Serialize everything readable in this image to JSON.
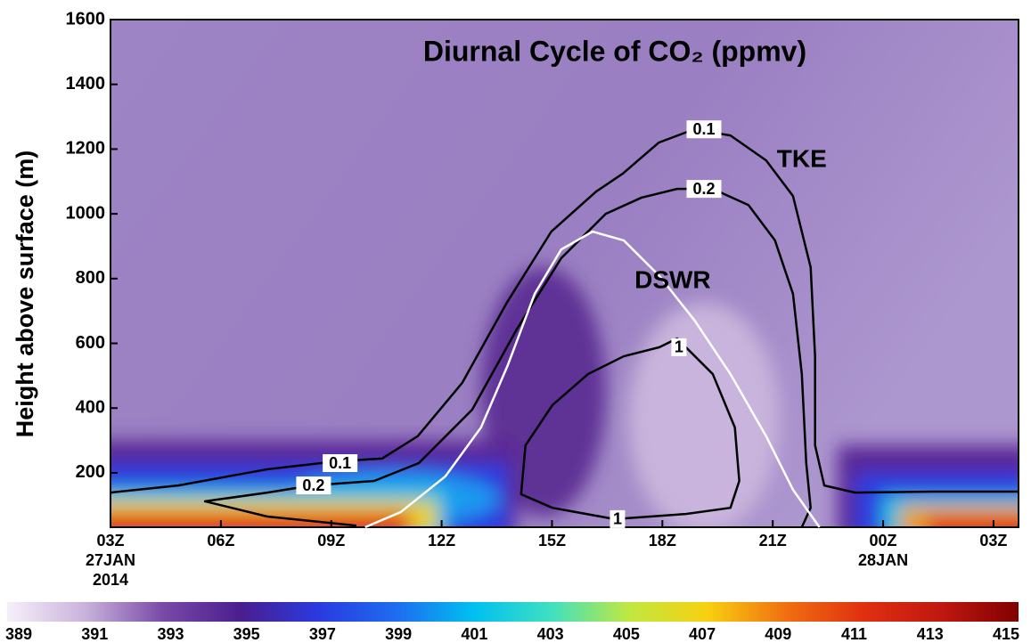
{
  "chart_data": {
    "type": "contour",
    "title": "Diurnal Cycle of CO₂ (ppmv)",
    "y_label": "Height above surface (m)",
    "xlim": [
      0,
      24.68
    ],
    "ylim": [
      32,
      1600
    ],
    "yticks": [
      200,
      400,
      600,
      800,
      1000,
      1200,
      1400,
      1600
    ],
    "xticks": [
      {
        "value": 0,
        "label": "03Z",
        "date": "27JAN",
        "year": "2014"
      },
      {
        "value": 3,
        "label": "06Z"
      },
      {
        "value": 6,
        "label": "09Z"
      },
      {
        "value": 9,
        "label": "12Z"
      },
      {
        "value": 12,
        "label": "15Z"
      },
      {
        "value": 15,
        "label": "18Z"
      },
      {
        "value": 18,
        "label": "21Z"
      },
      {
        "value": 21,
        "label": "00Z",
        "date": "28JAN"
      },
      {
        "value": 24,
        "label": "03Z"
      }
    ],
    "series": [
      {
        "name": "TKE",
        "level": "0.1",
        "color": "#000000",
        "x": [
          0,
          1.84,
          4.26,
          6.17,
          7.38,
          8.35,
          9.56,
          10.77,
          11.98,
          13.2,
          13.92,
          14.9,
          15.86,
          16.85,
          17.82,
          18.55,
          19.03,
          19.15,
          19.15,
          19.4,
          20.24,
          22.42,
          24.67
        ],
        "y": [
          139,
          161,
          211,
          236,
          244,
          313,
          478,
          725,
          945,
          1069,
          1124,
          1220,
          1261,
          1242,
          1165,
          1055,
          835,
          560,
          285,
          161,
          139,
          142,
          142
        ]
      },
      {
        "name": "TKE",
        "level": "0.2",
        "color": "#000000",
        "x": [
          6.68,
          4.26,
          2.57,
          4.26,
          5.47,
          7.17,
          8.38,
          9.83,
          11.04,
          12.25,
          13.46,
          14.43,
          15.4,
          16.37,
          17.34,
          18.06,
          18.55,
          18.79,
          18.91,
          19.03,
          18.79
        ],
        "y": [
          37,
          65,
          112,
          139,
          161,
          175,
          230,
          395,
          643,
          863,
          1000,
          1050,
          1077,
          1077,
          1027,
          918,
          753,
          505,
          230,
          92,
          32
        ]
      },
      {
        "name": "TKE",
        "level": "1",
        "color": "#000000",
        "x": [
          13.7,
          12.01,
          11.16,
          11.28,
          12.01,
          12.98,
          13.95,
          14.92,
          15.4,
          16.37,
          16.97,
          17.09,
          16.85,
          15.64,
          13.7
        ],
        "y": [
          57,
          92,
          134,
          285,
          409,
          505,
          560,
          588,
          615,
          505,
          340,
          175,
          92,
          73,
          57
        ]
      },
      {
        "name": "DSWR",
        "color": "#ffffff",
        "x": [
          6.92,
          7.89,
          9.1,
          10.07,
          10.8,
          11.53,
          12.25,
          13.1,
          13.95,
          14.92,
          15.88,
          16.85,
          17.82,
          18.55,
          19.27
        ],
        "y": [
          32,
          79,
          189,
          340,
          533,
          753,
          890,
          945,
          918,
          808,
          670,
          505,
          313,
          148,
          32
        ]
      }
    ],
    "annotations": [
      {
        "text": "TKE",
        "x": 18.79,
        "y": 1165
      },
      {
        "text": "DSWR",
        "x": 15.28,
        "y": 791
      }
    ],
    "contour_labels": [
      {
        "text": "0.1",
        "x": 6.24,
        "y": 230
      },
      {
        "text": "0.1",
        "x": 16.13,
        "y": 1261
      },
      {
        "text": "0.2",
        "x": 5.52,
        "y": 161
      },
      {
        "text": "0.2",
        "x": 16.13,
        "y": 1077
      },
      {
        "text": "1",
        "x": 15.45,
        "y": 588
      },
      {
        "text": "1",
        "x": 13.78,
        "y": 57
      }
    ],
    "colorbar": {
      "range": [
        389,
        415
      ],
      "ticks": [
        389,
        391,
        393,
        395,
        397,
        399,
        401,
        403,
        405,
        407,
        409,
        411,
        413,
        415
      ],
      "colors": [
        "#f6f0fa",
        "#c9b2dc",
        "#7a4aa8",
        "#4a1e8e",
        "#2a3ae0",
        "#1e6cf0",
        "#00c0f0",
        "#40e0c0",
        "#c0e840",
        "#f8d010",
        "#f07010",
        "#e03010",
        "#c01810",
        "#800000"
      ]
    }
  }
}
